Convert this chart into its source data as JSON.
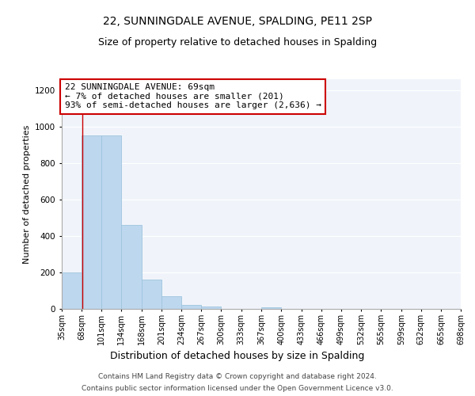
{
  "title": "22, SUNNINGDALE AVENUE, SPALDING, PE11 2SP",
  "subtitle": "Size of property relative to detached houses in Spalding",
  "xlabel": "Distribution of detached houses by size in Spalding",
  "ylabel": "Number of detached properties",
  "bin_edges": [
    35,
    68,
    101,
    134,
    168,
    201,
    234,
    267,
    300,
    333,
    367,
    400,
    433,
    466,
    499,
    532,
    565,
    599,
    632,
    665,
    698
  ],
  "bin_heights": [
    200,
    950,
    950,
    460,
    160,
    70,
    22,
    15,
    2,
    0,
    10,
    0,
    0,
    0,
    0,
    0,
    0,
    0,
    0,
    0
  ],
  "bar_color": "#bdd7ee",
  "bar_edgecolor": "#9ec4de",
  "vline_x": 69,
  "vline_color": "#cc0000",
  "annotation_line1": "22 SUNNINGDALE AVENUE: 69sqm",
  "annotation_line2": "← 7% of detached houses are smaller (201)",
  "annotation_line3": "93% of semi-detached houses are larger (2,636) →",
  "annotation_box_color": "#ffffff",
  "annotation_box_edgecolor": "#cc0000",
  "ylim": [
    0,
    1260
  ],
  "yticks": [
    0,
    200,
    400,
    600,
    800,
    1000,
    1200
  ],
  "tick_labels": [
    "35sqm",
    "68sqm",
    "101sqm",
    "134sqm",
    "168sqm",
    "201sqm",
    "234sqm",
    "267sqm",
    "300sqm",
    "333sqm",
    "367sqm",
    "400sqm",
    "433sqm",
    "466sqm",
    "499sqm",
    "532sqm",
    "565sqm",
    "599sqm",
    "632sqm",
    "665sqm",
    "698sqm"
  ],
  "footer_line1": "Contains HM Land Registry data © Crown copyright and database right 2024.",
  "footer_line2": "Contains public sector information licensed under the Open Government Licence v3.0.",
  "title_fontsize": 10,
  "subtitle_fontsize": 9,
  "xlabel_fontsize": 9,
  "ylabel_fontsize": 8,
  "tick_fontsize": 7,
  "annotation_fontsize": 8,
  "footer_fontsize": 6.5,
  "bg_color": "#f0f4fa"
}
